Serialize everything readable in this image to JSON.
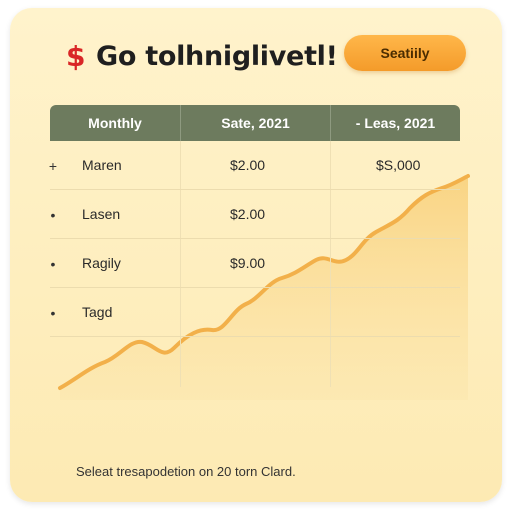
{
  "header": {
    "icon": "dollar-sign-icon",
    "icon_glyph": "$",
    "title": "Go tolhniglivetl!",
    "button_label": "Seatiily"
  },
  "table": {
    "columns": [
      "Monthly",
      "Sate, 2021",
      "- Leas, 2021"
    ],
    "rows": [
      {
        "bullet": "+",
        "name": "Maren",
        "v1": "$2.00",
        "v2": "$S,000"
      },
      {
        "bullet": "•",
        "name": "Lasen",
        "v1": "$2.00",
        "v2": ""
      },
      {
        "bullet": "•",
        "name": "Ragily",
        "v1": "$9.00",
        "v2": ""
      },
      {
        "bullet": "•",
        "name": "Tagd",
        "v1": "",
        "v2": ""
      }
    ]
  },
  "footer": {
    "text": "Seleat tresapodetion on 20 torn Clard."
  },
  "colors": {
    "accent": "#f49b2a",
    "header_bg": "#6d7b5e",
    "title_icon": "#d92626",
    "card_bg": "#fdeab3"
  }
}
